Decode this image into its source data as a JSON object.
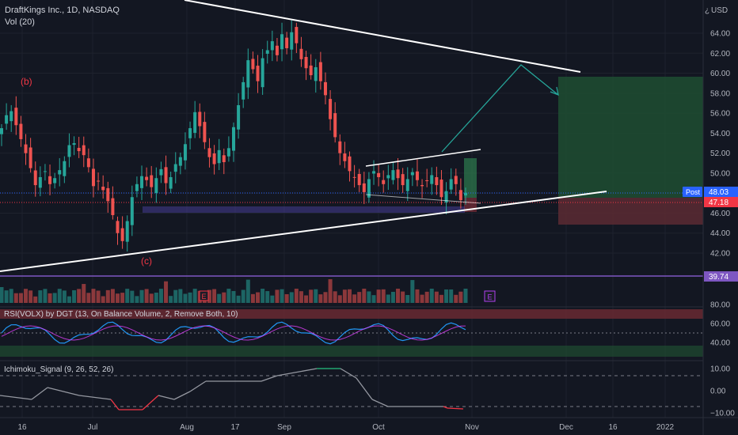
{
  "header": {
    "symbol_title": "DraftKings Inc., 1D, NASDAQ",
    "volume_label": "Vol (20)",
    "currency": "USD"
  },
  "colors": {
    "background": "#131722",
    "up": "#26a69a",
    "down": "#ef5350",
    "text": "#d1d4dc",
    "axis_text": "#b2b5be",
    "purple": "#7e57c2",
    "long_target": "#1f4d31",
    "long_stop": "#5c2a32",
    "badge_blue": "#2962ff",
    "badge_red": "#f23645"
  },
  "chart_data": [
    {
      "type": "candlestick",
      "title": "DraftKings Inc., 1D, NASDAQ",
      "y_axis": {
        "ticks": [
          42,
          44,
          46,
          48,
          50,
          52,
          54,
          56,
          58,
          60,
          62,
          64
        ]
      },
      "x_axis": {
        "ticks": [
          "16",
          "Jul",
          "Aug",
          "17",
          "Sep",
          "Oct",
          "Nov",
          "Dec",
          "16",
          "2022"
        ]
      },
      "price_labels": [
        {
          "text": "Post",
          "value": "48.03",
          "color": "#2962ff"
        },
        {
          "text": "",
          "value": "47.18",
          "color": "#f23645"
        },
        {
          "text": "",
          "value": "39.74",
          "color": "#7e57c2"
        }
      ],
      "annotations": [
        {
          "text": "(b)",
          "color": "#f23645"
        },
        {
          "text": "(c)",
          "color": "#f23645"
        }
      ],
      "close_series": [
        54.5,
        55.8,
        56.2,
        54.8,
        53.4,
        52.0,
        50.5,
        48.8,
        49.6,
        50.2,
        48.9,
        49.5,
        50.3,
        51.2,
        52.8,
        53.0,
        52.2,
        51.8,
        50.6,
        48.7,
        49.2,
        48.3,
        47.2,
        45.8,
        44.0,
        43.2,
        45.2,
        47.6,
        48.9,
        49.7,
        49.3,
        48.6,
        49.5,
        50.4,
        49.0,
        49.6,
        50.9,
        51.6,
        52.9,
        54.5,
        56.1,
        54.7,
        53.1,
        51.6,
        50.9,
        52.3,
        51.1,
        52.5,
        54.6,
        56.8,
        59.1,
        61.3,
        60.4,
        59.2,
        61.5,
        62.3,
        63.2,
        61.8,
        63.9,
        62.5,
        64.1,
        63.0,
        61.4,
        60.5,
        59.8,
        60.6,
        59.2,
        57.8,
        55.4,
        53.6,
        52.0,
        51.2,
        50.2,
        49.6,
        48.8,
        48.1,
        49.4,
        50.2,
        49.6,
        48.9,
        49.8,
        50.3,
        49.5,
        48.8,
        49.4,
        50.1,
        49.3,
        48.7,
        49.2,
        49.8,
        48.8,
        47.6,
        48.2,
        49.4,
        48.9,
        47.3,
        48.03
      ]
    },
    {
      "type": "bar",
      "title": "Vol (20)",
      "badges": [
        "E",
        "E"
      ]
    },
    {
      "type": "line",
      "title": "RSI(VOLX) by DGT (13, On Balance Volume, 2, Remove Both, 10)",
      "y_axis": {
        "ticks": [
          "80.00",
          "60.00",
          "40.00"
        ]
      }
    },
    {
      "type": "line",
      "title": "Ichimoku_Signal (9, 26, 52, 26)",
      "y_axis": {
        "ticks": [
          "10.00",
          "0.00",
          "−10.00"
        ]
      }
    }
  ]
}
